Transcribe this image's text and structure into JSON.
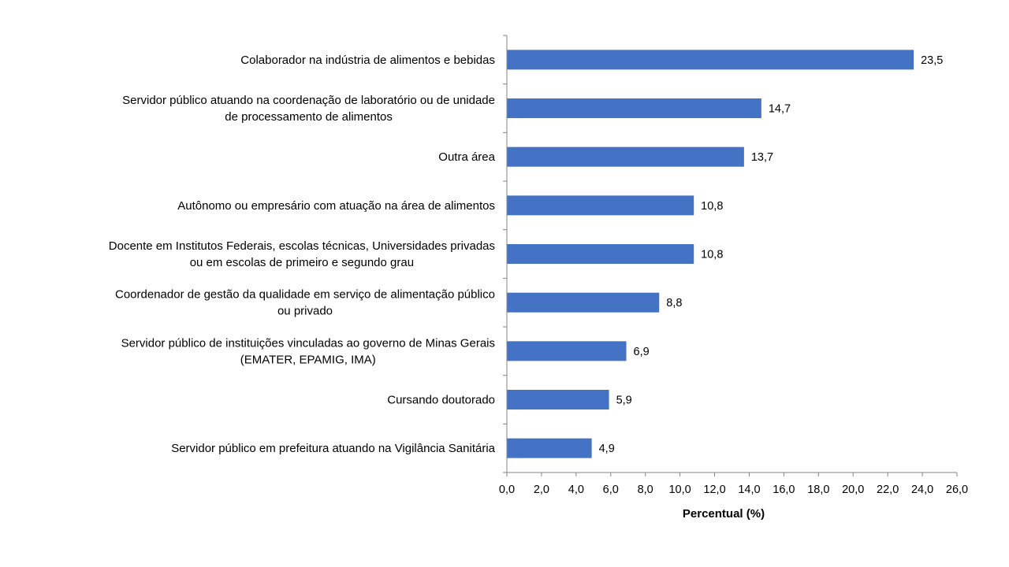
{
  "chart_data": {
    "type": "bar",
    "orientation": "horizontal",
    "categories": [
      [
        "Colaborador na indústria de alimentos e bebidas"
      ],
      [
        "Servidor público atuando na coordenação de laboratório ou de unidade",
        "de processamento de alimentos"
      ],
      [
        "Outra área"
      ],
      [
        "Autônomo ou empresário com atuação na área de alimentos"
      ],
      [
        "Docente em Institutos Federais, escolas técnicas, Universidades privadas",
        "ou em escolas de primeiro e segundo grau"
      ],
      [
        "Coordenador de gestão da qualidade em serviço de alimentação público",
        "ou privado"
      ],
      [
        "Servidor público de instituições vinculadas ao governo de Minas Gerais",
        "(EMATER, EPAMIG, IMA)"
      ],
      [
        "Cursando doutorado"
      ],
      [
        "Servidor público em prefeitura atuando na Vigilância Sanitária"
      ]
    ],
    "values": [
      23.5,
      14.7,
      13.7,
      10.8,
      10.8,
      8.8,
      6.9,
      5.9,
      4.9
    ],
    "value_labels": [
      "23,5",
      "14,7",
      "13,7",
      "10,8",
      "10,8",
      "8,8",
      "6,9",
      "5,9",
      "4,9"
    ],
    "xlim": [
      0,
      26
    ],
    "xticks": [
      0,
      2,
      4,
      6,
      8,
      10,
      12,
      14,
      16,
      18,
      20,
      22,
      24,
      26
    ],
    "xtick_labels": [
      "0,0",
      "2,0",
      "4,0",
      "6,0",
      "8,0",
      "10,0",
      "12,0",
      "14,0",
      "16,0",
      "18,0",
      "20,0",
      "22,0",
      "24,0",
      "26,0"
    ],
    "xlabel": "Percentual  (%)",
    "ylabel": "",
    "title": "",
    "grid": false,
    "bar_color": "#4472C4",
    "axis_color": "#868686"
  }
}
